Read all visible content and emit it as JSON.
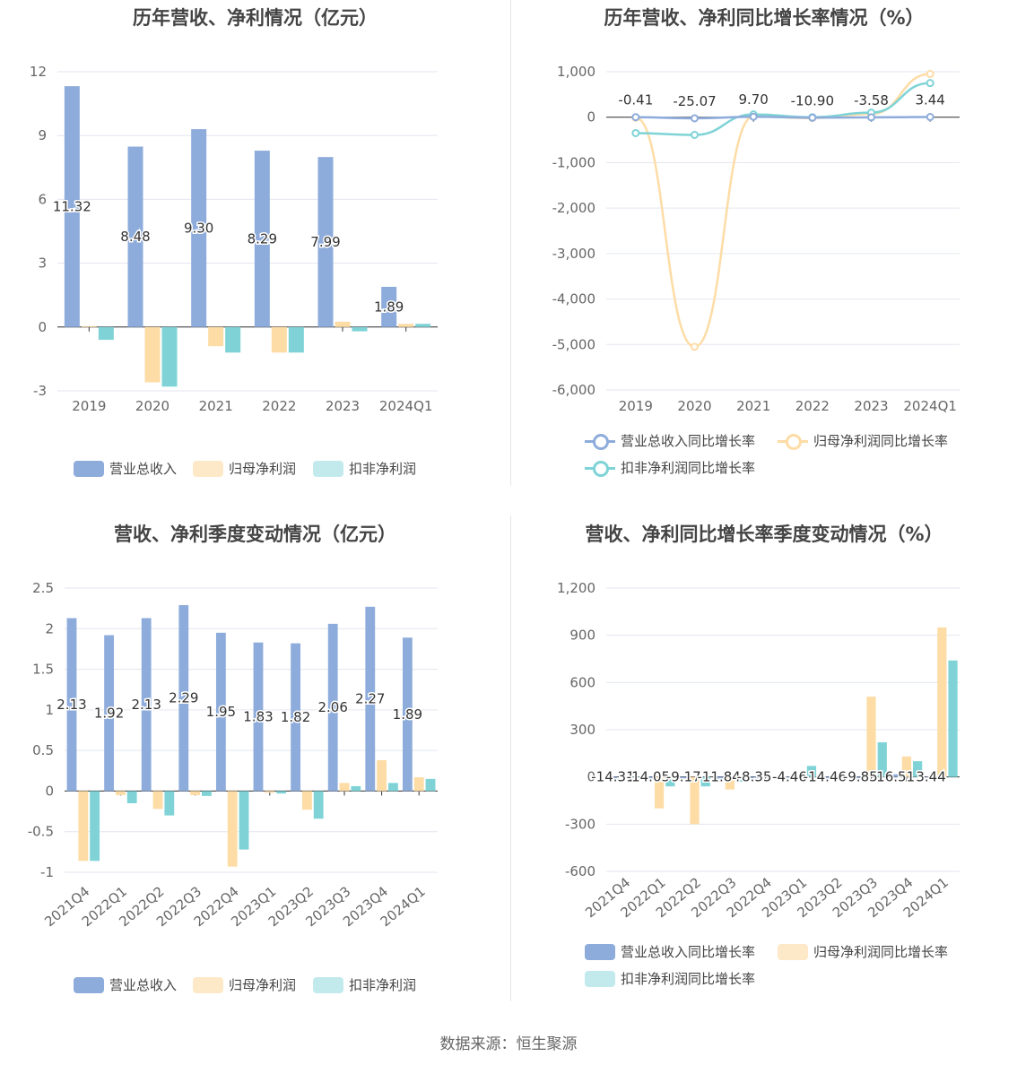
{
  "source": "数据来源：恒生聚源",
  "colors": {
    "revenue": "#8eacdb",
    "parent_np": "#fddca6",
    "deducted_np": "#7fd3d6",
    "grid": "#e3e6ef",
    "axis": "#333333"
  },
  "chart_data": [
    {
      "type": "bar",
      "title": "历年营收、净利情况（亿元）",
      "categories": [
        "2019",
        "2020",
        "2021",
        "2022",
        "2023",
        "2024Q1"
      ],
      "series": [
        {
          "name": "营业总收入",
          "values": [
            11.32,
            8.48,
            9.3,
            8.29,
            7.99,
            1.89
          ],
          "labels": [
            "11.32",
            "8.48",
            "9.30",
            "8.29",
            "7.99",
            "1.89"
          ]
        },
        {
          "name": "归母净利润",
          "values": [
            0.04,
            -2.6,
            -0.9,
            -1.2,
            0.25,
            0.15
          ]
        },
        {
          "name": "扣非净利润",
          "values": [
            -0.6,
            -2.8,
            -1.2,
            -1.2,
            -0.2,
            0.15
          ]
        }
      ],
      "yticks": [
        "12",
        "9",
        "6",
        "3",
        "0",
        "-3"
      ],
      "ylim": [
        -3,
        12
      ],
      "grid": true,
      "legend": "bottom"
    },
    {
      "type": "line",
      "title": "历年营收、净利同比增长率情况（%）",
      "categories": [
        "2019",
        "2020",
        "2021",
        "2022",
        "2023",
        "2024Q1"
      ],
      "series": [
        {
          "name": "营业总收入同比增长率",
          "values": [
            -0.41,
            -25.07,
            9.7,
            -10.9,
            -3.58,
            3.44
          ],
          "labels": [
            "-0.41",
            "-25.07",
            "9.70",
            "-10.90",
            "-3.58",
            "3.44"
          ]
        },
        {
          "name": "归母净利润同比增长率",
          "values": [
            -10,
            -5050,
            20,
            -20,
            70,
            950
          ]
        },
        {
          "name": "扣非净利润同比增长率",
          "values": [
            -350,
            -390,
            60,
            0,
            100,
            750
          ]
        }
      ],
      "yticks": [
        "1,000",
        "0",
        "-1,000",
        "-2,000",
        "-3,000",
        "-4,000",
        "-5,000",
        "-6,000"
      ],
      "ylim": [
        -6000,
        1000
      ],
      "grid": true,
      "legend": "bottom"
    },
    {
      "type": "bar",
      "title": "营收、净利季度变动情况（亿元）",
      "categories": [
        "2021Q4",
        "2022Q1",
        "2022Q2",
        "2022Q3",
        "2022Q4",
        "2023Q1",
        "2023Q2",
        "2023Q3",
        "2023Q4",
        "2024Q1"
      ],
      "series": [
        {
          "name": "营业总收入",
          "values": [
            2.13,
            1.92,
            2.13,
            2.29,
            1.95,
            1.83,
            1.82,
            2.06,
            2.27,
            1.89
          ],
          "labels": [
            "2.13",
            "1.92",
            "2.13",
            "2.29",
            "1.95",
            "1.83",
            "1.82",
            "2.06",
            "2.27",
            "1.89"
          ]
        },
        {
          "name": "归母净利润",
          "values": [
            -0.86,
            -0.05,
            -0.22,
            -0.05,
            -0.93,
            -0.02,
            -0.23,
            0.1,
            0.38,
            0.17
          ]
        },
        {
          "name": "扣非净利润",
          "values": [
            -0.86,
            -0.15,
            -0.3,
            -0.06,
            -0.72,
            -0.03,
            -0.34,
            0.06,
            0.1,
            0.15
          ]
        }
      ],
      "yticks": [
        "2.5",
        "2",
        "1.5",
        "1",
        "0.5",
        "0",
        "-0.5",
        "-1"
      ],
      "ylim": [
        -1,
        2.5
      ],
      "grid": true,
      "legend": "bottom"
    },
    {
      "type": "bar",
      "title": "营收、净利同比增长率季度变动情况（%）",
      "categories": [
        "2021Q4",
        "2022Q1",
        "2022Q2",
        "2022Q3",
        "2022Q4",
        "2023Q1",
        "2023Q2",
        "2023Q3",
        "2023Q4",
        "2024Q1"
      ],
      "series": [
        {
          "name": "营业总收入同比增长率",
          "values": [
            -14.31,
            -14.05,
            -9.17,
            -11.84,
            -8.35,
            -4.46,
            -14.46,
            -9.85,
            16.51,
            3.44
          ],
          "labels": [
            "-14.31",
            "-14.05",
            "-9.17",
            "-11.84",
            "-8.35",
            "-4.46",
            "-14.46",
            "-9.85",
            "16.51",
            "3.44"
          ]
        },
        {
          "name": "归母净利润同比增长率",
          "values": [
            0,
            -200,
            -300,
            -80,
            0,
            0,
            0,
            510,
            130,
            950
          ]
        },
        {
          "name": "扣非净利润同比增长率",
          "values": [
            0,
            -60,
            -60,
            -30,
            0,
            70,
            0,
            220,
            100,
            740
          ]
        }
      ],
      "yticks": [
        "1,200",
        "900",
        "600",
        "300",
        "0",
        "-300",
        "-600"
      ],
      "ylim": [
        -600,
        1200
      ],
      "grid": true,
      "legend": "bottom"
    }
  ]
}
